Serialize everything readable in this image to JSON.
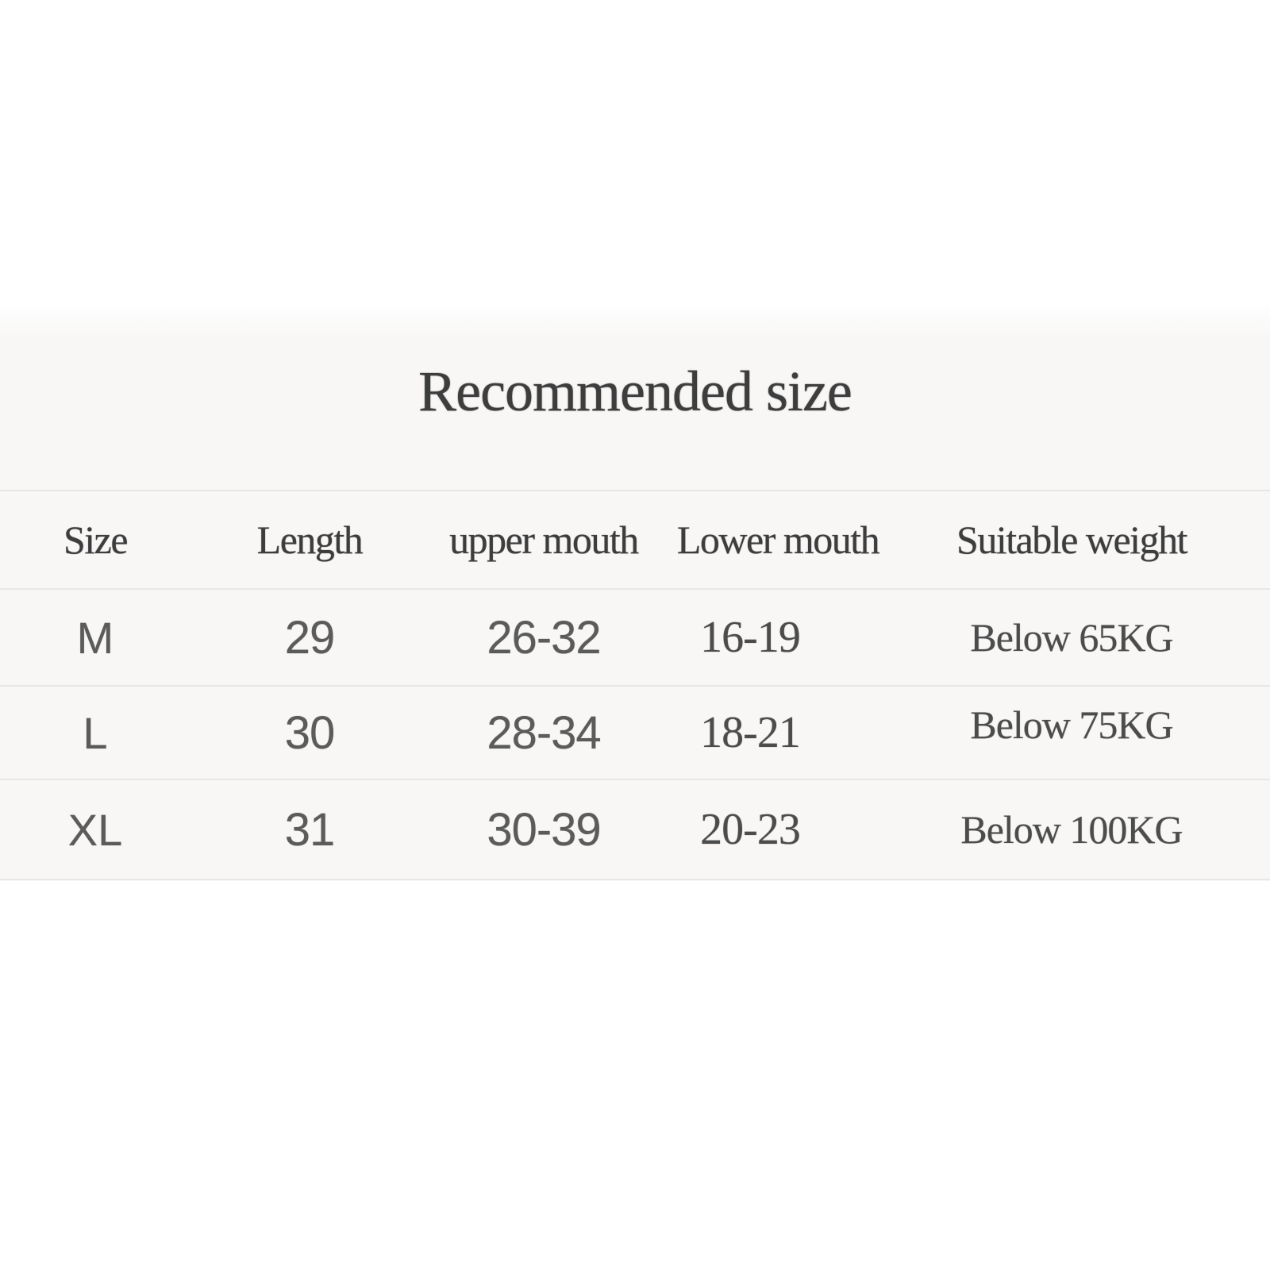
{
  "title": "Recommended size",
  "table": {
    "headers": [
      "Size",
      "Length",
      "upper mouth",
      "Lower mouth",
      "Suitable weight"
    ],
    "rows": [
      {
        "size": "M",
        "length": "29",
        "upper_mouth": "26-32",
        "lower_mouth": "16-19",
        "suitable_weight": "Below 65KG"
      },
      {
        "size": "L",
        "length": "30",
        "upper_mouth": "28-34",
        "lower_mouth": "18-21",
        "suitable_weight": "Below 75KG"
      },
      {
        "size": "XL",
        "length": "31",
        "upper_mouth": "30-39",
        "lower_mouth": "20-23",
        "suitable_weight": "Below 100KG"
      }
    ]
  },
  "colors": {
    "page_background": "#ffffff",
    "band_background": "#f8f7f6",
    "separator_line": "#e8e7e7",
    "heading_text": "#3d3d3d",
    "data_text_sans": "#5b5b5b",
    "data_text_serif": "#4c4c4c"
  },
  "chart_data": {
    "type": "table",
    "title": "Recommended size",
    "columns": [
      "Size",
      "Length",
      "upper mouth",
      "Lower mouth",
      "Suitable weight"
    ],
    "rows": [
      [
        "M",
        "29",
        "26-32",
        "16-19",
        "Below 65KG"
      ],
      [
        "L",
        "30",
        "28-34",
        "18-21",
        "Below 75KG"
      ],
      [
        "XL",
        "31",
        "30-39",
        "20-23",
        "Below 100KG"
      ]
    ]
  }
}
